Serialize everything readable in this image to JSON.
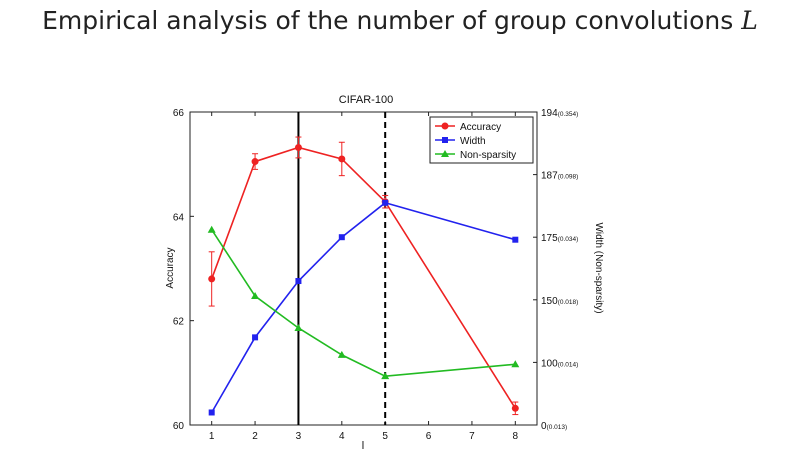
{
  "slide": {
    "title_text": "Empirical analysis of the number of group convolutions",
    "title_math": "L"
  },
  "chart_data": {
    "type": "line",
    "title": "CIFAR-100",
    "xlabel": "l",
    "ylabel_left": "Accuracy",
    "ylabel_right": "Width (Non-sparsity)",
    "x_ticks": [
      "1",
      "2",
      "3",
      "4",
      "5",
      "6",
      "7",
      "8"
    ],
    "xlim": [
      0.5,
      8.5
    ],
    "y_left_lim": [
      60,
      66
    ],
    "y_left_ticks": [
      "60",
      "62",
      "64",
      "66"
    ],
    "y_right_ticks": [
      {
        "label": "0",
        "sub": "(0.013)",
        "value": 0
      },
      {
        "label": "100",
        "sub": "(0.014)",
        "value": 1
      },
      {
        "label": "150",
        "sub": "(0.018)",
        "value": 2
      },
      {
        "label": "175",
        "sub": "(0.034)",
        "value": 3
      },
      {
        "label": "187",
        "sub": "(0.098)",
        "value": 4
      },
      {
        "label": "194",
        "sub": "(0.354)",
        "value": 5
      }
    ],
    "y_right_lim": [
      0,
      5
    ],
    "series": [
      {
        "name": "Accuracy",
        "axis": "left",
        "color": "#ee2222",
        "marker": "circle",
        "x": [
          1,
          2,
          3,
          4,
          5,
          8
        ],
        "y": [
          62.8,
          65.05,
          65.32,
          65.1,
          64.28,
          60.32
        ],
        "err": [
          0.52,
          0.15,
          0.2,
          0.32,
          0.12,
          0.12
        ]
      },
      {
        "name": "Width",
        "axis": "right",
        "color": "#2222ee",
        "marker": "square",
        "x": [
          1,
          2,
          3,
          4,
          5,
          8
        ],
        "y": [
          0.2,
          1.4,
          2.3,
          3.0,
          3.55,
          2.96
        ]
      },
      {
        "name": "Non-sparsity",
        "axis": "right",
        "color": "#22bb22",
        "marker": "triangle",
        "x": [
          1,
          2,
          3,
          4,
          5,
          8
        ],
        "y": [
          3.12,
          2.06,
          1.55,
          1.12,
          0.78,
          0.97
        ]
      }
    ],
    "vlines": [
      {
        "x": 3,
        "style": "solid"
      },
      {
        "x": 5,
        "style": "dashed"
      }
    ],
    "legend_position": "top-right",
    "grid": false
  }
}
